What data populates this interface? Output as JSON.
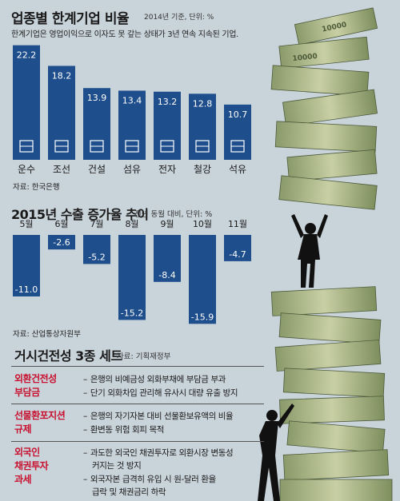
{
  "chart1": {
    "title": "업종별 한계기업 비율",
    "note": "2014년 기준, 단위: %",
    "subtitle": "한계기업은 영업이익으로 이자도 못 갚는 상태가 3년 연속 지속된 기업.",
    "source": "자료: 한국은행",
    "accent": "#1f4e8c",
    "chart_data": {
      "type": "bar",
      "categories": [
        "운수",
        "조선",
        "건설",
        "섬유",
        "전자",
        "철강",
        "석유"
      ],
      "values": [
        22.2,
        18.2,
        13.9,
        13.4,
        13.2,
        12.8,
        10.7
      ],
      "icons": [
        "cargo-icon",
        "ship-icon",
        "building-icon",
        "fabric-roll-icon",
        "chip-icon",
        "steel-icon",
        "oil-drop-icon"
      ],
      "ylim": [
        0,
        24
      ]
    }
  },
  "chart2": {
    "title": "2015년 수출 증가율 추이",
    "note": "전년 동월 대비, 단위: %",
    "source": "자료: 산업통상자원부",
    "accent": "#1f4e8c",
    "chart_data": {
      "type": "bar",
      "categories": [
        "5월",
        "6월",
        "7월",
        "8월",
        "9월",
        "10월",
        "11월"
      ],
      "values": [
        -11.0,
        -2.6,
        -5.2,
        -15.2,
        -8.4,
        -15.9,
        -4.7
      ],
      "value_labels": [
        "-11.0",
        "-2.6",
        "-5.2",
        "-15.2",
        "-8.4",
        "-15.9",
        "-4.7"
      ],
      "ylim": [
        -16,
        0
      ]
    }
  },
  "section3": {
    "title": "거시건전성 3종 세트",
    "source": "자료: 기획재정부",
    "label_color": "#c8102e",
    "rows": [
      {
        "label": [
          "외환건전성",
          "부담금"
        ],
        "items": [
          "은행의 비예금성 외화부채에 부담금 부과",
          "단기 외화차입 관리해 유사시 대량 유출 방지"
        ]
      },
      {
        "label": [
          "선물환포지션",
          "규제"
        ],
        "items": [
          "은행의 자기자본 대비 선물환보유액의 비율",
          "환변동 위험 회피 목적"
        ]
      },
      {
        "label": [
          "외국인",
          "채권투자",
          "과세"
        ],
        "items": [
          "과도한 외국인 채권투자로 외환시장 변동성",
          "커지는 것 방지",
          "외국자본 급격히 유입 시 원-달러 환율",
          "급락 및 채권금리 하락"
        ]
      }
    ]
  },
  "illustration": {
    "subject": "money-stack-with-man-illustration",
    "banknote_text": "10000"
  }
}
